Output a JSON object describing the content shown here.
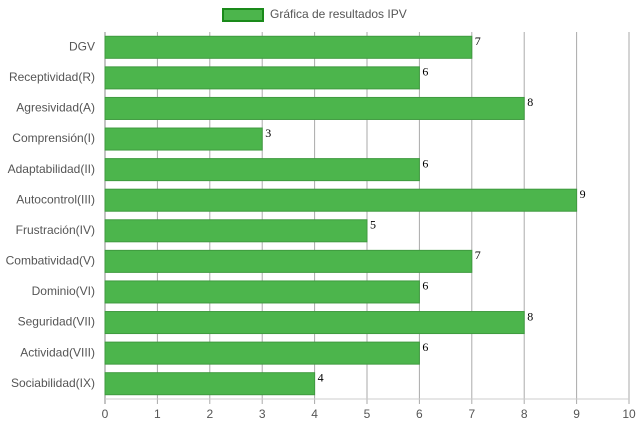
{
  "chart_data": {
    "type": "bar",
    "orientation": "horizontal",
    "categories": [
      "DGV",
      "Receptividad(R)",
      "Agresividad(A)",
      "Comprensión(I)",
      "Adaptabilidad(II)",
      "Autocontrol(III)",
      "Frustración(IV)",
      "Combatividad(V)",
      "Dominio(VI)",
      "Seguridad(VII)",
      "Actividad(VIII)",
      "Sociabilidad(IX)"
    ],
    "series": [
      {
        "name": "Gráfica de resultados IPV",
        "color": "#4cb54c",
        "values": [
          7,
          6,
          8,
          3,
          6,
          9,
          5,
          7,
          6,
          8,
          6,
          4
        ]
      }
    ],
    "xlim": [
      0,
      10
    ],
    "xticks": [
      0,
      1,
      2,
      3,
      4,
      5,
      6,
      7,
      8,
      9,
      10
    ],
    "grid": true,
    "legend": "top"
  }
}
